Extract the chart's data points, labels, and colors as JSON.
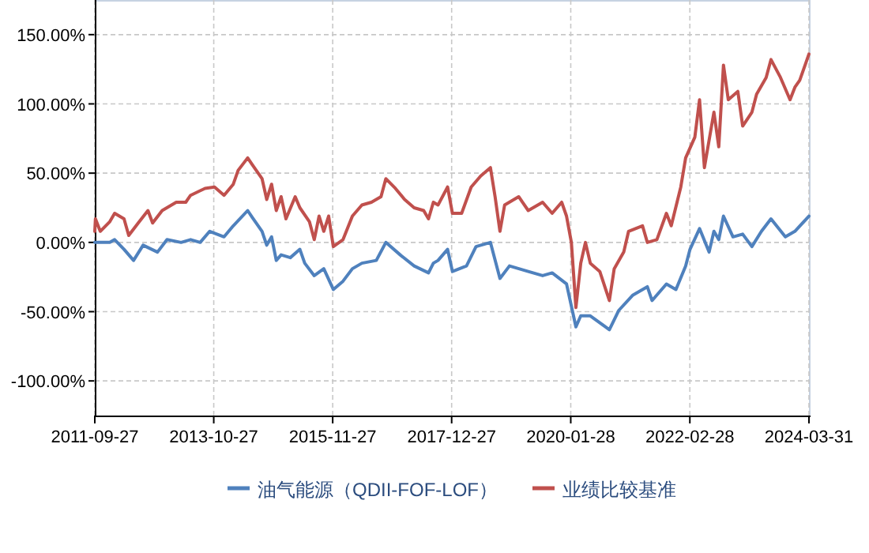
{
  "chart_data": {
    "type": "line",
    "xlim": [
      "2011-09-27",
      "2024-03-31"
    ],
    "xticks": [
      "2011-09-27",
      "2013-10-27",
      "2015-11-27",
      "2017-12-27",
      "2020-01-28",
      "2022-02-28",
      "2024-03-31"
    ],
    "ylim": [
      -125,
      175
    ],
    "yticks": [
      {
        "value": -100,
        "label": "-100.00%"
      },
      {
        "value": -50,
        "label": "-50.00%"
      },
      {
        "value": 0,
        "label": "0.00%"
      },
      {
        "value": 50,
        "label": "50.00%"
      },
      {
        "value": 100,
        "label": "100.00%"
      },
      {
        "value": 150,
        "label": "150.00%"
      }
    ],
    "grid": true,
    "legend": "bottom",
    "line_style": "solid",
    "marker": "none",
    "series": [
      {
        "name": "油气能源（QDII-FOF-LOF）",
        "color": "#4f81bd",
        "x": [
          "2011-09-27",
          "2012-01",
          "2012-02",
          "2012-04",
          "2012-06",
          "2012-08",
          "2012-11",
          "2013-01",
          "2013-04",
          "2013-06",
          "2013-08",
          "2013-10",
          "2014-01",
          "2014-03",
          "2014-06",
          "2014-07",
          "2014-09",
          "2014-10",
          "2014-11",
          "2014-12",
          "2015-01",
          "2015-03",
          "2015-05",
          "2015-06",
          "2015-08",
          "2015-10",
          "2015-12",
          "2016-02",
          "2016-04",
          "2016-06",
          "2016-09",
          "2016-11",
          "2017-02",
          "2017-05",
          "2017-08",
          "2017-09",
          "2017-10",
          "2017-12",
          "2018-01",
          "2018-04",
          "2018-06",
          "2018-09",
          "2018-11",
          "2019-01",
          "2019-05",
          "2019-08",
          "2019-10",
          "2020-01",
          "2020-03",
          "2020-04",
          "2020-06",
          "2020-10",
          "2020-12",
          "2021-03",
          "2021-06",
          "2021-07",
          "2021-10",
          "2021-12",
          "2022-02",
          "2022-03",
          "2022-05",
          "2022-07",
          "2022-08",
          "2022-09",
          "2022-10",
          "2022-12",
          "2023-02",
          "2023-04",
          "2023-06",
          "2023-08",
          "2023-11",
          "2024-01",
          "2024-03-31"
        ],
        "values": [
          0,
          0,
          2,
          -5,
          -13,
          -2,
          -7,
          2,
          0,
          2,
          0,
          8,
          4,
          12,
          23,
          18,
          8,
          -2,
          4,
          -13,
          -9,
          -11,
          -5,
          -15,
          -24,
          -19,
          -34,
          -28,
          -19,
          -15,
          -13,
          0,
          -9,
          -17,
          -22,
          -15,
          -13,
          -5,
          -21,
          -17,
          -3,
          0,
          -26,
          -17,
          -21,
          -24,
          -22,
          -30,
          -61,
          -53,
          -53,
          -63,
          -49,
          -38,
          -32,
          -42,
          -30,
          -34,
          -17,
          -5,
          10,
          -7,
          8,
          2,
          19,
          4,
          6,
          -3,
          8,
          17,
          4,
          8,
          19
        ]
      },
      {
        "name": "业绩比较基准",
        "color": "#c0504d",
        "x": [
          "2011-09-27",
          "2011-10",
          "2011-11",
          "2012-01",
          "2012-02",
          "2012-04",
          "2012-05",
          "2012-07",
          "2012-09",
          "2012-10",
          "2012-12",
          "2013-03",
          "2013-05",
          "2013-06",
          "2013-09",
          "2013-11",
          "2014-01",
          "2014-03",
          "2014-04",
          "2014-06",
          "2014-07",
          "2014-09",
          "2014-10",
          "2014-11",
          "2014-12",
          "2015-01",
          "2015-02",
          "2015-04",
          "2015-05",
          "2015-07",
          "2015-08",
          "2015-09",
          "2015-10",
          "2015-11",
          "2015-12",
          "2016-02",
          "2016-04",
          "2016-06",
          "2016-08",
          "2016-10",
          "2016-11",
          "2017-01",
          "2017-03",
          "2017-05",
          "2017-07",
          "2017-08",
          "2017-09",
          "2017-10",
          "2017-12",
          "2018-01",
          "2018-03",
          "2018-05",
          "2018-07",
          "2018-09",
          "2018-10",
          "2018-11",
          "2018-12",
          "2019-03",
          "2019-05",
          "2019-08",
          "2019-10",
          "2019-12",
          "2020-01",
          "2020-02",
          "2020-03",
          "2020-04",
          "2020-05",
          "2020-06",
          "2020-08",
          "2020-10",
          "2020-11",
          "2021-01",
          "2021-02",
          "2021-05",
          "2021-06",
          "2021-08",
          "2021-10",
          "2021-11",
          "2022-01",
          "2022-02",
          "2022-04",
          "2022-05",
          "2022-06",
          "2022-08",
          "2022-09",
          "2022-10",
          "2022-11",
          "2023-01",
          "2023-02",
          "2023-04",
          "2023-05",
          "2023-07",
          "2023-08",
          "2023-10",
          "2023-12",
          "2024-01",
          "2024-02",
          "2024-03-31"
        ],
        "values": [
          8,
          17,
          8,
          15,
          21,
          17,
          5,
          14,
          23,
          14,
          23,
          29,
          29,
          34,
          39,
          40,
          34,
          42,
          52,
          61,
          56,
          46,
          31,
          42,
          23,
          33,
          17,
          33,
          25,
          15,
          2,
          19,
          8,
          19,
          -3,
          2,
          19,
          27,
          29,
          33,
          46,
          39,
          31,
          25,
          23,
          17,
          29,
          27,
          40,
          21,
          21,
          40,
          48,
          54,
          33,
          8,
          27,
          33,
          23,
          29,
          21,
          29,
          19,
          0,
          -47,
          -15,
          0,
          -15,
          -21,
          -42,
          -19,
          -7,
          8,
          12,
          0,
          2,
          21,
          12,
          40,
          61,
          76,
          103,
          54,
          94,
          69,
          128,
          103,
          109,
          84,
          94,
          107,
          119,
          132,
          119,
          103,
          112,
          117,
          136
        ]
      }
    ]
  }
}
